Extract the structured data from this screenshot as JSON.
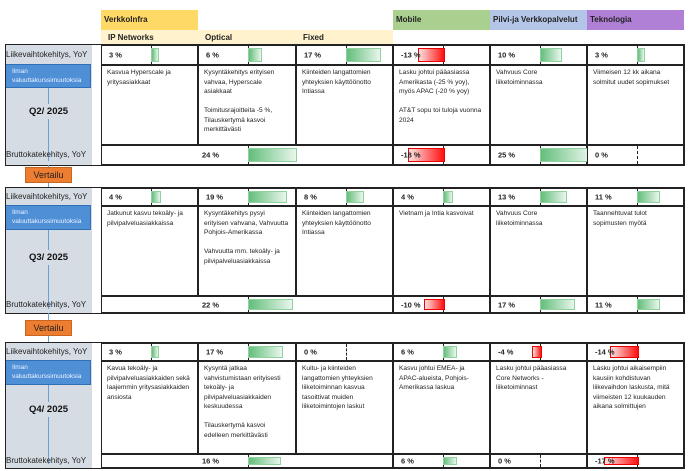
{
  "headers": {
    "groups": [
      {
        "label": "VerkkoInfra",
        "color": "#ffd966"
      },
      {
        "label": "Mobile",
        "color": "#a9d08e"
      },
      {
        "label": "Pilvi-ja Verkkopalvelut",
        "color": "#b4c6e7"
      },
      {
        "label": "Teknologia",
        "color": "#b07fd6"
      }
    ],
    "subheaders": [
      "IP Networks",
      "Optical",
      "Fixed"
    ],
    "subheader_bg": "#fff2cc"
  },
  "labels": {
    "revenue": "Liikevaihtokehitys, YoY",
    "gross": "Bruttokatekehitys, YoY",
    "fx_note": "Ilman\nvaluuttakurssimuutoksia",
    "compare": "Vertailu"
  },
  "colors": {
    "positive": "#63be7b",
    "negative": "#ff0000",
    "panel": "#d6dce4",
    "fx_box": "#4f8fd6",
    "compare": "#ed7d31"
  },
  "quarters": [
    {
      "title": "Q2/ 2025",
      "revenue": [
        3,
        6,
        17,
        -13,
        10,
        3
      ],
      "revenue_text": [
        "3 %",
        "6 %",
        "17 %",
        "-13 %",
        "10 %",
        "3 %"
      ],
      "descriptions": [
        "Kasvua Hyperscale ja yritysasiakkaat",
        "Kysyntäkehitys erityisen vahvaa, Hyperscale asiakkaat\n\nToimitusrajoitteita -5 %, Tilauskertymä kasvoi merkittävästi",
        "Kiinteiden langattomien yhteyksien käyttöönotto Intiassa",
        "Lasku johtui pääasiassa Amerikasta (-25 % yoy), myös APAC (-20 % yoy)\n\nAT&T sopu toi tuloja vuonna 2024",
        "Vahvuus Core liiketoiminnassa",
        "Viimeisen 12 kk aikana solmitut uudet sopimukset"
      ],
      "gross": [
        24,
        -18,
        25,
        0
      ],
      "gross_text": [
        "24 %",
        "-18 %",
        "25 %",
        "0 %"
      ]
    },
    {
      "title": "Q3/ 2025",
      "revenue": [
        4,
        19,
        8,
        4,
        13,
        11
      ],
      "revenue_text": [
        "4 %",
        "19 %",
        "8 %",
        "4 %",
        "13 %",
        "11 %"
      ],
      "descriptions": [
        "Jatkunut kasvu tekoäly- ja pilvipalveluasiakkaissa",
        "Kysyntäkehitys pysyi erityisen vahvana, Vahvuutta Pohjois-Amerikassa\n\nVahvuutta mm. tekoäly- ja pilvipalveluasiakkaissa",
        "Kiinteiden langattomien yhteyksien käyttöönotto Intiassa",
        "Vietnam ja Intia kasvoivat",
        "Vahvuus Core liiketoiminnassa",
        "Taannehtuvat tulot sopimusten myötä"
      ],
      "gross": [
        22,
        -10,
        17,
        11
      ],
      "gross_text": [
        "22 %",
        "-10 %",
        "17 %",
        "11 %"
      ]
    },
    {
      "title": "Q4/ 2025",
      "revenue": [
        3,
        17,
        0,
        6,
        -4,
        -14
      ],
      "revenue_text": [
        "3 %",
        "17 %",
        "0 %",
        "6 %",
        "-4 %",
        "-14 %"
      ],
      "descriptions": [
        "Kavua tekoäly- ja pilvipalveluasiakkaiden sekä laajemmin yritysasiakkaiden ansiosta",
        "Kysyntä jatkaa vahvistumistaan erityisesti tekoäly- ja pilvipalveluasiakkaiden keskuudessa\n\nTilauskertymä kasvoi edelleen merkittävästi",
        "Kuitu- ja kiinteiden langattomien yhteyksien liiketoiminnan kasvua tasoittivat muiden liiketoimintojen laskut",
        "Kasvu johtui EMEA- ja APAC-alueista, Pohjois-Amerikassa laskua",
        "Lasku johtui pääasiassa Core Networks -liiketoiminnast",
        "Lasku johtui aikaisempiin kausiin kohdistuvan liikevaihdon laskusta, mitä viimeisten 12 kuukauden aikana solmittujen"
      ],
      "gross": [
        16,
        6,
        0,
        -17
      ],
      "gross_text": [
        "16 %",
        "6 %",
        "0 %",
        "-17 %"
      ]
    }
  ]
}
